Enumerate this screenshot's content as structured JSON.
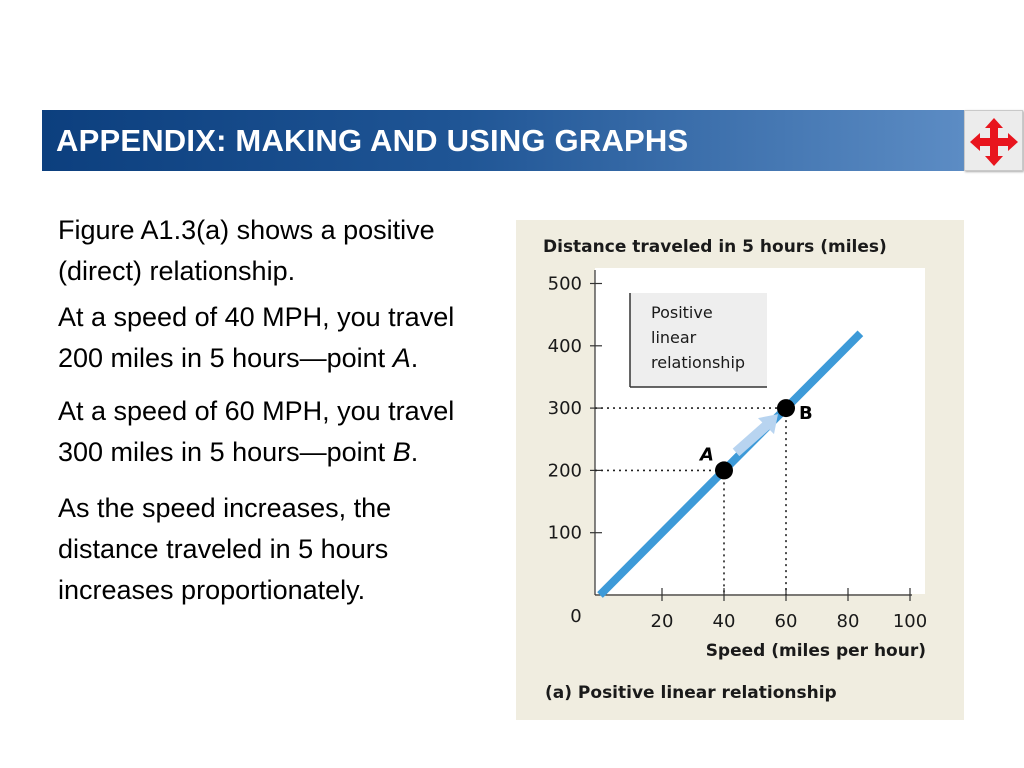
{
  "header": {
    "title": "APPENDIX: MAKING AND USING GRAPHS",
    "nav_icon": "four-way-arrows-icon",
    "bar_color": "#0c3f7e",
    "nav_color": "#e8151e"
  },
  "text": {
    "p1": "Figure A1.3(a) shows a positive (direct) relationship.",
    "p2_main": "At a speed of 40 MPH, you travel 200 miles in 5 hours—point ",
    "p2_point": "A",
    "p2_end": ".",
    "p3_main": "At a speed of 60 MPH, you travel 300 miles in 5 hours—point ",
    "p3_point": "B",
    "p3_end": ".",
    "p4": "As the speed increases, the distance traveled in 5 hours increases proportionately."
  },
  "chart_data": {
    "type": "line",
    "ylabel": "Distance traveled in 5 hours (miles)",
    "xlabel": "Speed (miles per hour)",
    "caption": "(a)  Positive linear relationship",
    "x_ticks": [
      20,
      40,
      60,
      80,
      100
    ],
    "y_ticks": [
      100,
      200,
      300,
      400,
      500
    ],
    "origin_label": "0",
    "xlim": [
      0,
      100
    ],
    "ylim": [
      0,
      500
    ],
    "series": [
      {
        "x": [
          0,
          84
        ],
        "y": [
          0,
          420
        ]
      }
    ],
    "points": [
      {
        "label": "A",
        "x": 40,
        "y": 200
      },
      {
        "label": "B",
        "x": 60,
        "y": 300
      }
    ],
    "annotation": "Positive linear relationship",
    "grid": false,
    "panel_color": "#f0ede0",
    "line_color": "#3d9ad8"
  }
}
